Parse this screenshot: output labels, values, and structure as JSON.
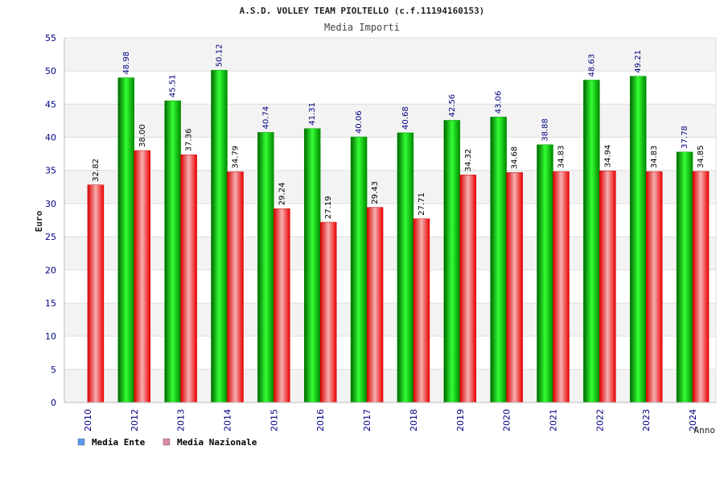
{
  "chart_data": {
    "type": "bar",
    "title": "A.S.D. VOLLEY TEAM PIOLTELLO (c.f.11194160153)",
    "subtitle": "Media Importi",
    "xlabel": "Anno",
    "ylabel": "Euro",
    "ylim": [
      0,
      55
    ],
    "yticks": [
      0,
      5,
      10,
      15,
      20,
      25,
      30,
      35,
      40,
      45,
      50,
      55
    ],
    "grid": true,
    "legend_position": "bottom-left",
    "categories": [
      "2010",
      "2012",
      "2013",
      "2014",
      "2015",
      "2016",
      "2017",
      "2018",
      "2019",
      "2020",
      "2021",
      "2022",
      "2023",
      "2024"
    ],
    "series": [
      {
        "name": "Media Ente",
        "color": "#00cc00",
        "legend_color": "#5599ee",
        "values": [
          null,
          48.98,
          45.51,
          50.12,
          40.74,
          41.31,
          40.06,
          40.68,
          42.56,
          43.06,
          38.88,
          48.63,
          49.21,
          37.78
        ],
        "labels": [
          "",
          "48.98",
          "45.51",
          "50.12",
          "40.74",
          "41.31",
          "40.06",
          "40.68",
          "42.56",
          "43.06",
          "38.88",
          "48.63",
          "49.21",
          "37.78"
        ]
      },
      {
        "name": "Media Nazionale",
        "color": "#ee1111",
        "legend_color": "#dd88aa",
        "values": [
          32.82,
          38.0,
          37.36,
          34.79,
          29.24,
          27.19,
          29.43,
          27.71,
          34.32,
          34.68,
          34.83,
          34.94,
          34.83,
          34.85
        ],
        "labels": [
          "32.82",
          "38.00",
          "37.36",
          "34.79",
          "29.24",
          "27.19",
          "29.43",
          "27.71",
          "34.32",
          "34.68",
          "34.83",
          "34.94",
          "34.83",
          "34.85"
        ]
      }
    ]
  }
}
